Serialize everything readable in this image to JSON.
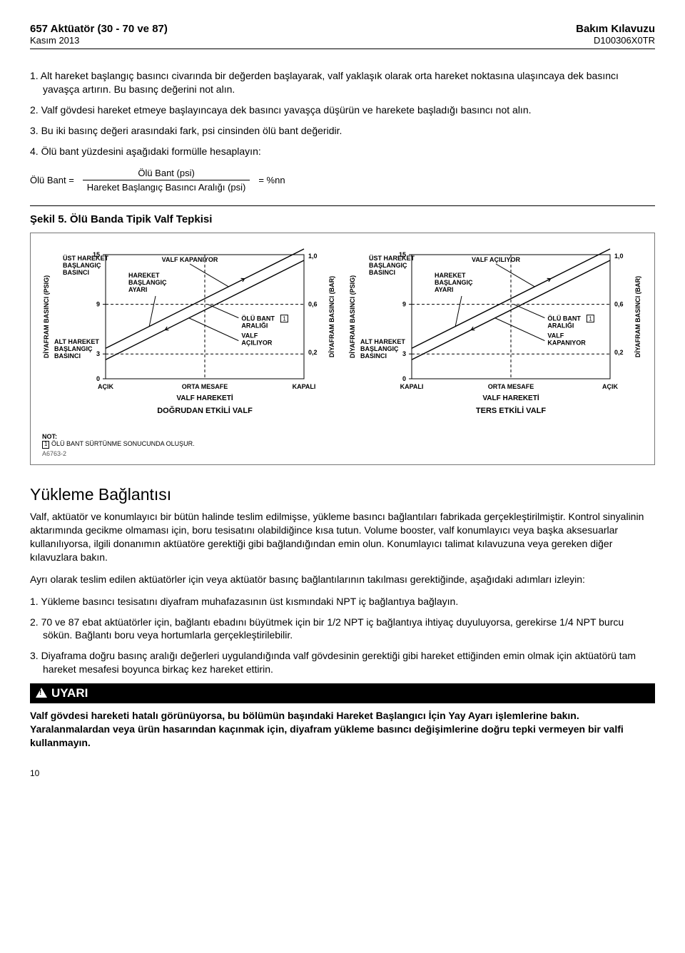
{
  "header": {
    "left_title": "657 Aktüatör (30 - 70 ve 87)",
    "left_sub": "Kasım 2013",
    "right_title": "Bakım Kılavuzu",
    "right_sub": "D100306X0TR"
  },
  "steps": {
    "s1": "1.  Alt hareket başlangıç basıncı civarında bir değerden başlayarak, valf yaklaşık olarak orta hareket noktasına ulaşıncaya dek basıncı yavaşça artırın. Bu basınç değerini not alın.",
    "s2": "2.  Valf gövdesi hareket etmeye başlayıncaya dek basıncı yavaşça düşürün ve harekete başladığı basıncı not alın.",
    "s3": "3.  Bu iki basınç değeri arasındaki fark, psi cinsinden ölü bant değeridir.",
    "s4": "4.  Ölü bant yüzdesini aşağıdaki formülle hesaplayın:"
  },
  "formula": {
    "lhs": "Ölü Bant =",
    "num": "Ölü Bant (psi)",
    "den": "Hareket Başlangıç Basıncı Aralığı (psi)",
    "rhs": "= %nn"
  },
  "figure": {
    "title": "Şekil 5. Ölü Banda Tipik Valf Tepkisi",
    "note_label": "NOT:",
    "note_text": "ÖLÜ BANT SÜRTÜNME SONUCUNDA OLUŞUR.",
    "ref": "A6763-2",
    "left": {
      "y_axis_label": "DİYAFRAM BASINCI (PSIG)",
      "y2_axis_label": "DİYAFRAM BASINCI (BAR)",
      "y_ticks": [
        "15",
        "9",
        "3",
        "0"
      ],
      "y2_ticks": [
        "1,0",
        "0,6",
        "0,2"
      ],
      "x_ticks": [
        "AÇIK",
        "ORTA MESAFE",
        "KAPALI"
      ],
      "x_title": "VALF HAREKETİ",
      "subtitle": "DOĞRUDAN ETKİLİ VALF",
      "upper_label": "ÜST HAREKET\nBAŞLANGIÇ\nBASINCI",
      "lower_label": "ALT HAREKET\nBAŞLANGIÇ\nBASINCI",
      "anno_top": "VALF KAPANIYOR",
      "anno_mid": "HAREKET\nBAŞLANGIÇ\nAYARI",
      "anno_band": "ÖLÜ BANT\nARALIĞI",
      "anno_bot": "VALF\nAÇILIYOR",
      "colors": {
        "axis": "#000000",
        "dashed": "#000000",
        "bg": "#ffffff"
      }
    },
    "right": {
      "y_axis_label": "DİYAFRAM BASINCI (PSIG)",
      "y2_axis_label": "DİYAFRAM BASINCI (BAR)",
      "y_ticks": [
        "15",
        "9",
        "3",
        "0"
      ],
      "y2_ticks": [
        "1,0",
        "0,6",
        "0,2"
      ],
      "x_ticks": [
        "KAPALI",
        "ORTA MESAFE",
        "AÇIK"
      ],
      "x_title": "VALF HAREKETİ",
      "subtitle": "TERS ETKİLİ VALF",
      "upper_label": "ÜST HAREKET\nBAŞLANGIÇ\nBASINCI",
      "lower_label": "ALT HAREKET\nBAŞLANGIÇ\nBASINCI",
      "anno_top": "VALF AÇILIYOR",
      "anno_mid": "HAREKET\nBAŞLANGIÇ\nAYARI",
      "anno_band": "ÖLÜ BANT\nARALIĞI",
      "anno_bot": "VALF\nKAPANIYOR",
      "colors": {
        "axis": "#000000",
        "dashed": "#000000",
        "bg": "#ffffff"
      }
    }
  },
  "section": {
    "title": "Yükleme Bağlantısı",
    "p1": "Valf, aktüatör ve konumlayıcı bir bütün halinde teslim edilmişse, yükleme basıncı bağlantıları fabrikada gerçekleştirilmiştir. Kontrol sinyalinin aktarımında gecikme olmaması için, boru tesisatını olabildiğince kısa tutun. Volume booster, valf konumlayıcı veya başka aksesuarlar kullanılıyorsa, ilgili donanımın aktüatöre gerektiği gibi bağlandığından emin olun. Konumlayıcı talimat kılavuzuna veya gereken diğer kılavuzlara bakın.",
    "p2": "Ayrı olarak teslim edilen aktüatörler için veya aktüatör basınç bağlantılarının takılması gerektiğinde, aşağıdaki adımları izleyin:",
    "s1": "1.  Yükleme basıncı tesisatını diyafram muhafazasının üst kısmındaki NPT iç bağlantıya bağlayın.",
    "s2": "2.  70 ve 87 ebat aktüatörler için, bağlantı ebadını büyütmek için bir 1/2 NPT iç bağlantıya ihtiyaç duyuluyorsa, gerekirse 1/4 NPT burcu sökün. Bağlantı boru veya hortumlarla gerçekleştirilebilir.",
    "s3": "3.  Diyaframa doğru basınç aralığı değerleri uygulandığında valf gövdesinin gerektiği gibi hareket ettiğinden emin olmak için aktüatörü tam hareket mesafesi boyunca birkaç kez hareket ettirin."
  },
  "warning": {
    "label": "UYARI",
    "body": "Valf gövdesi hareketi hatalı görünüyorsa, bu bölümün başındaki Hareket Başlangıcı İçin Yay Ayarı işlemlerine bakın. Yaralanmalardan veya ürün hasarından kaçınmak için, diyafram yükleme basıncı değişimlerine doğru tepki vermeyen bir valfi kullanmayın."
  },
  "page_num": "10"
}
